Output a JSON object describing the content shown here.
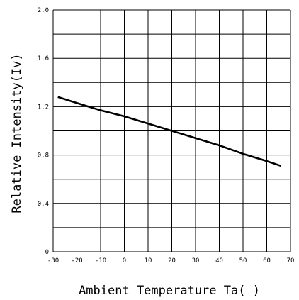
{
  "chart_data": {
    "type": "line",
    "title": "",
    "xlabel": "Ambient Temperature Ta( )",
    "ylabel": "Relative Intensity(Iv)",
    "xlim": [
      -30,
      70
    ],
    "ylim": [
      0,
      2.0
    ],
    "x_ticks": [
      "-30",
      "-20",
      "-10",
      "0",
      "10",
      "20",
      "30",
      "40",
      "50",
      "60",
      "70"
    ],
    "y_ticks": [
      "0",
      "0.4",
      "0.8",
      "1.2",
      "1.6",
      "2.0"
    ],
    "grid": true,
    "series": [
      {
        "x": [
          -28,
          -20,
          -10,
          0,
          10,
          20,
          30,
          40,
          50,
          60,
          66
        ],
        "y": [
          1.28,
          1.23,
          1.17,
          1.12,
          1.06,
          1.0,
          0.94,
          0.88,
          0.81,
          0.75,
          0.71
        ]
      }
    ]
  }
}
